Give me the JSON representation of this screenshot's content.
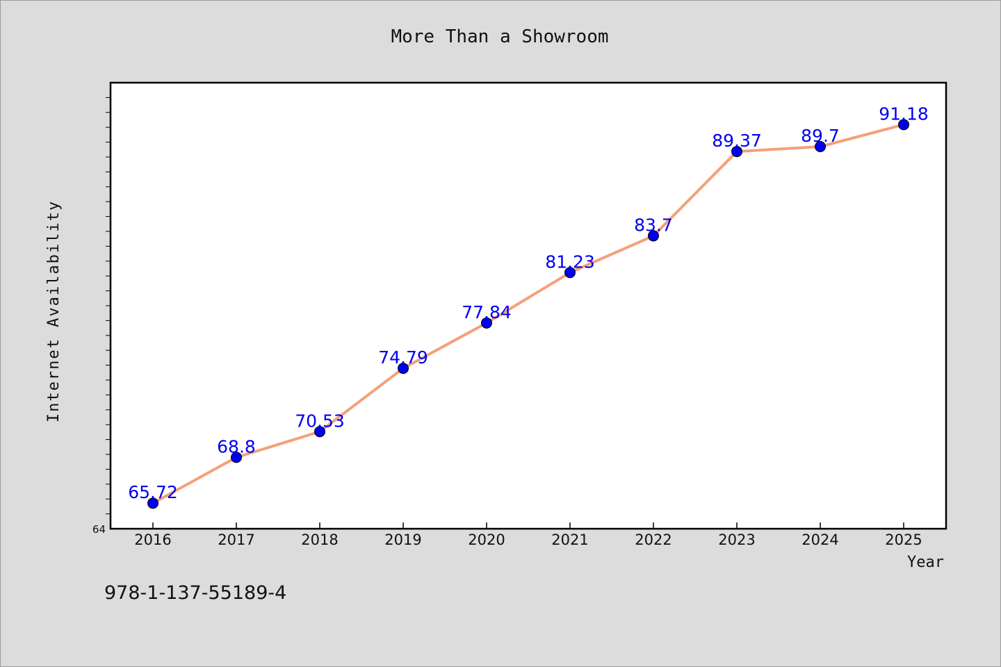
{
  "chart_data": {
    "type": "line",
    "title": "More Than a Showroom",
    "xlabel": "Year",
    "ylabel": "Internet Availability",
    "x": [
      "2016",
      "2017",
      "2018",
      "2019",
      "2020",
      "2021",
      "2022",
      "2023",
      "2024",
      "2025"
    ],
    "values": [
      65.72,
      68.8,
      70.53,
      74.79,
      77.84,
      81.23,
      83.7,
      89.37,
      89.7,
      91.18
    ],
    "data_labels": [
      "65.72",
      "68.8",
      "70.53",
      "74.79",
      "77.84",
      "81.23",
      "83.7",
      "89.37",
      "89.7",
      "91.18"
    ],
    "ylim": [
      64,
      94
    ],
    "y_tick_labels": [
      "64"
    ],
    "grid": false,
    "line_color": "#f4a07a",
    "marker_color": "#0000ee"
  },
  "footer": {
    "isbn": "978-1-137-55189-4"
  }
}
